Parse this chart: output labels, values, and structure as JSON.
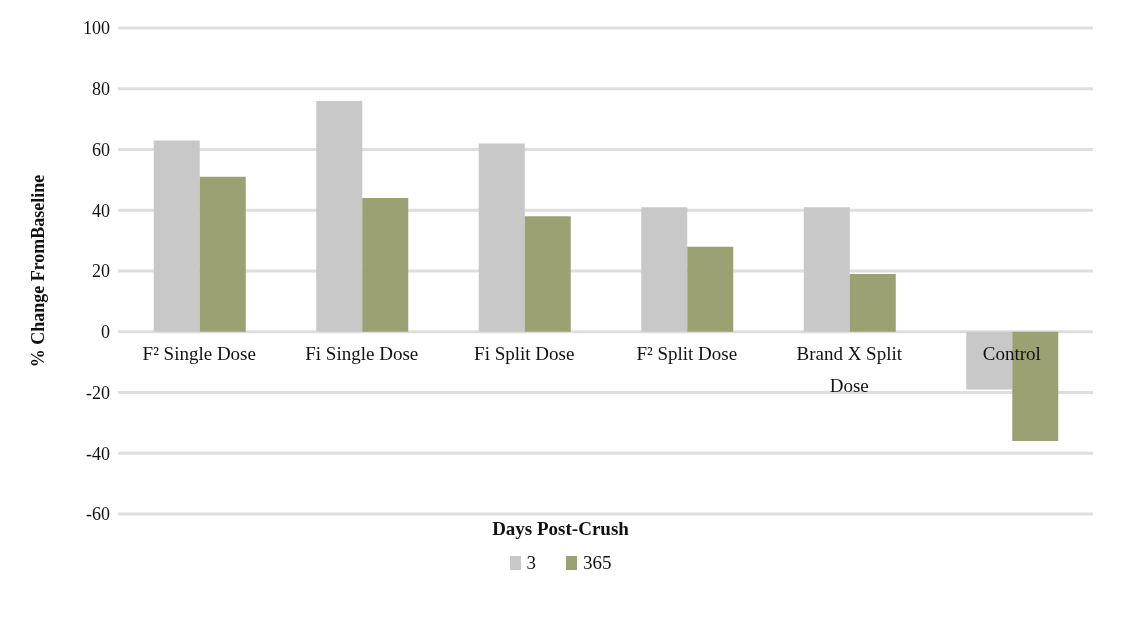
{
  "chart_data": {
    "type": "bar",
    "ylabel": "% Change FromBaseline",
    "legend_title": "Days Post-Crush",
    "categories": [
      "F² Single Dose",
      "Fi Single Dose",
      "Fi Split Dose",
      "F² Split Dose",
      "Brand X Split Dose",
      "Control"
    ],
    "series": [
      {
        "name": "3",
        "color": "#c8c8c8",
        "values": [
          63,
          76,
          62,
          41,
          41,
          -19
        ]
      },
      {
        "name": "365",
        "color": "#9ca173",
        "values": [
          51,
          44,
          38,
          28,
          19,
          -36
        ]
      }
    ],
    "ylim": [
      -60,
      100
    ],
    "yticks": [
      -60,
      -40,
      -20,
      0,
      20,
      40,
      60,
      80,
      100
    ],
    "grid": "y",
    "legend": "bottom"
  }
}
